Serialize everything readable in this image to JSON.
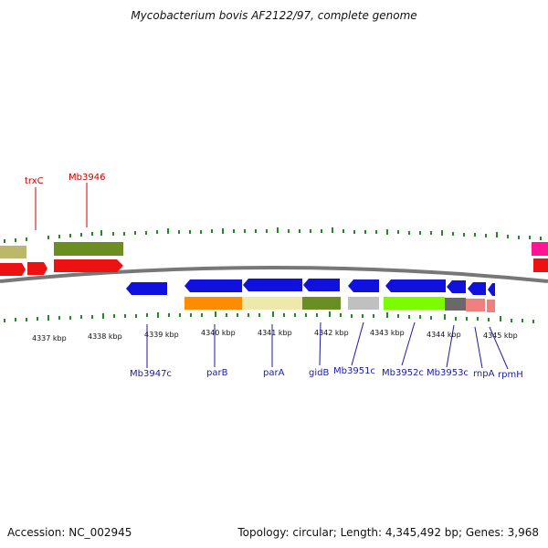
{
  "title": "Mycobacterium bovis AF2122/97, complete genome",
  "footer": {
    "accession": "Accession: NC_002945",
    "info": "Topology: circular; Length: 4,345,492 bp; Genes: 3,968"
  },
  "scale_labels": [
    "4337 kbp",
    "4338 kbp",
    "4339 kbp",
    "4340 kbp",
    "4341 kbp",
    "4342 kbp",
    "4343 kbp",
    "4344 kbp",
    "4345 kbp"
  ],
  "top_labels": [
    "trxC",
    "Mb3946"
  ],
  "bottom_labels": [
    "Mb3947c",
    "parB",
    "parA",
    "gidB",
    "Mb3951c",
    "Mb3952c",
    "Mb3953c",
    "rnpA",
    "rpmH"
  ],
  "colors": {
    "forward_cds": "#ee1111",
    "reverse_cds": "#1111dd",
    "olive": "#6b8e23",
    "khaki": "#bdb76b",
    "orange": "#ff8c00",
    "pale_khaki": "#eee8aa",
    "silver": "#c0c0c0",
    "lawn_green": "#7cfc00",
    "dim_gray": "#696969",
    "light_coral": "#f08080",
    "magenta": "#ff1493",
    "tick_green": "#228b22",
    "backbone": "#777777"
  }
}
